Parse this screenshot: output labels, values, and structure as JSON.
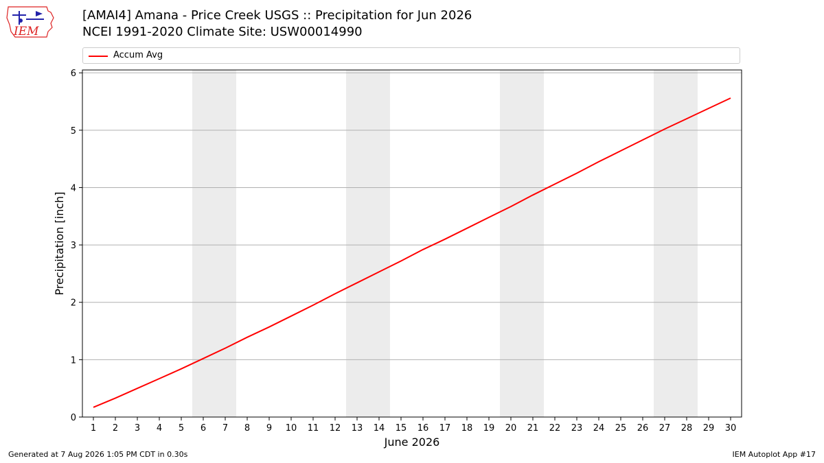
{
  "header": {
    "logo_text": "IEM",
    "title_line1": "[AMAI4] Amana - Price Creek USGS :: Precipitation for Jun 2026",
    "title_line2": "NCEI 1991-2020 Climate Site: USW00014990"
  },
  "footer": {
    "left": "Generated at 7 Aug 2026 1:05 PM CDT in 0.30s",
    "right": "IEM Autoplot App #17"
  },
  "colors": {
    "series": "#ff0000",
    "weekend_band": "#ececec",
    "grid": "#b0b0b0"
  },
  "chart_data": {
    "type": "line",
    "title": "[AMAI4] Amana - Price Creek USGS :: Precipitation for Jun 2026",
    "subtitle": "NCEI 1991-2020 Climate Site: USW00014990",
    "xlabel": "June 2026",
    "ylabel": "Precipitation [inch]",
    "xlim": [
      0.5,
      30.5
    ],
    "ylim": [
      0,
      6.05
    ],
    "x_ticks": [
      1,
      2,
      3,
      4,
      5,
      6,
      7,
      8,
      9,
      10,
      11,
      12,
      13,
      14,
      15,
      16,
      17,
      18,
      19,
      20,
      21,
      22,
      23,
      24,
      25,
      26,
      27,
      28,
      29,
      30
    ],
    "y_ticks": [
      0,
      1,
      2,
      3,
      4,
      5,
      6
    ],
    "grid": "horizontal",
    "legend_position": "top",
    "shaded_days": [
      [
        6,
        7
      ],
      [
        13,
        14
      ],
      [
        20,
        21
      ],
      [
        27,
        28
      ]
    ],
    "series": [
      {
        "name": "Accum Avg",
        "color": "#ff0000",
        "x": [
          1,
          2,
          3,
          4,
          5,
          6,
          7,
          8,
          9,
          10,
          11,
          12,
          13,
          14,
          15,
          16,
          17,
          18,
          19,
          20,
          21,
          22,
          23,
          24,
          25,
          26,
          27,
          28,
          29,
          30
        ],
        "values": [
          0.17,
          0.33,
          0.5,
          0.67,
          0.84,
          1.02,
          1.2,
          1.39,
          1.57,
          1.76,
          1.95,
          2.15,
          2.34,
          2.53,
          2.72,
          2.92,
          3.1,
          3.29,
          3.48,
          3.67,
          3.87,
          4.06,
          4.25,
          4.45,
          4.64,
          4.83,
          5.02,
          5.2,
          5.38,
          5.56
        ]
      }
    ]
  }
}
